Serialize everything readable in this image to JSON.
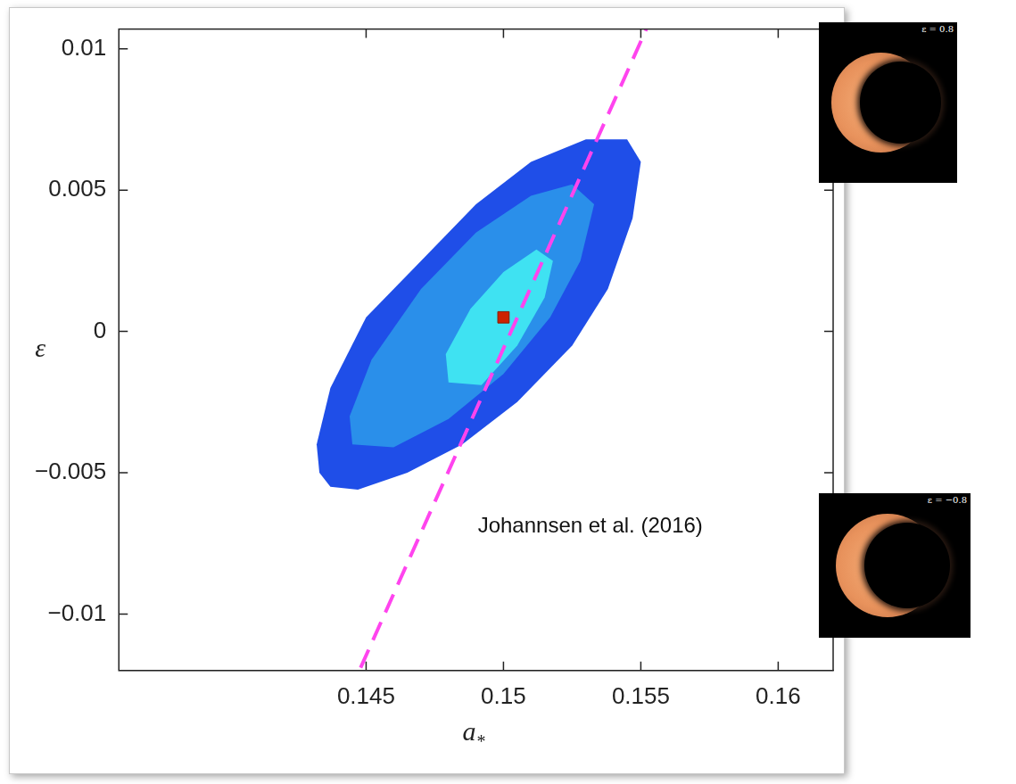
{
  "chart_data": {
    "type": "contour",
    "x_label": "a*",
    "y_label": "ε",
    "annotation": "Johannsen et al. (2016)",
    "xlim": [
      0.136,
      0.162
    ],
    "xticks": [
      0.145,
      0.15,
      0.155,
      0.16
    ],
    "ylim": [
      -0.012,
      0.0107
    ],
    "yticks": [
      {
        "value": -0.01,
        "label": "−0.01"
      },
      {
        "value": -0.005,
        "label": "−0.005"
      },
      0,
      0.005,
      0.01
    ],
    "grid": false,
    "regions": [
      {
        "color": "#1f4ee8",
        "points": [
          [
            0.1433,
            -0.005
          ],
          [
            0.1437,
            -0.0055
          ],
          [
            0.1447,
            -0.0056
          ],
          [
            0.1465,
            -0.005
          ],
          [
            0.1485,
            -0.004
          ],
          [
            0.1505,
            -0.0025
          ],
          [
            0.1525,
            -0.0005
          ],
          [
            0.1538,
            0.0015
          ],
          [
            0.1547,
            0.004
          ],
          [
            0.155,
            0.006
          ],
          [
            0.1545,
            0.0068
          ],
          [
            0.153,
            0.0068
          ],
          [
            0.151,
            0.006
          ],
          [
            0.149,
            0.0045
          ],
          [
            0.147,
            0.0025
          ],
          [
            0.145,
            0.0005
          ],
          [
            0.1437,
            -0.002
          ],
          [
            0.1432,
            -0.004
          ]
        ]
      },
      {
        "color": "#2a8fea",
        "points": [
          [
            0.1445,
            -0.004
          ],
          [
            0.146,
            -0.0041
          ],
          [
            0.148,
            -0.0031
          ],
          [
            0.15,
            -0.0015
          ],
          [
            0.1517,
            0.0005
          ],
          [
            0.1528,
            0.0025
          ],
          [
            0.1533,
            0.0045
          ],
          [
            0.1525,
            0.0052
          ],
          [
            0.151,
            0.0048
          ],
          [
            0.149,
            0.0035
          ],
          [
            0.147,
            0.0015
          ],
          [
            0.1452,
            -0.001
          ],
          [
            0.1444,
            -0.003
          ]
        ]
      },
      {
        "color": "#3fe2f2",
        "points": [
          [
            0.148,
            -0.0018
          ],
          [
            0.1492,
            -0.0019
          ],
          [
            0.1505,
            -0.0005
          ],
          [
            0.1515,
            0.0012
          ],
          [
            0.1518,
            0.0025
          ],
          [
            0.1512,
            0.0029
          ],
          [
            0.15,
            0.0021
          ],
          [
            0.1488,
            0.0008
          ],
          [
            0.1479,
            -0.0008
          ]
        ]
      }
    ],
    "series": [
      {
        "type": "line",
        "line_style": "dashed",
        "color": "#ff44ee",
        "x": [
          0.1448,
          0.1552
        ],
        "values": [
          -0.0119,
          0.0107
        ]
      },
      {
        "type": "scatter",
        "marker": "square",
        "color": "#cc2200",
        "x": [
          0.15
        ],
        "values": [
          0.0005
        ]
      }
    ],
    "insets": [
      {
        "label": "ε = 0.8"
      },
      {
        "label": "ε = −0.8"
      }
    ]
  }
}
